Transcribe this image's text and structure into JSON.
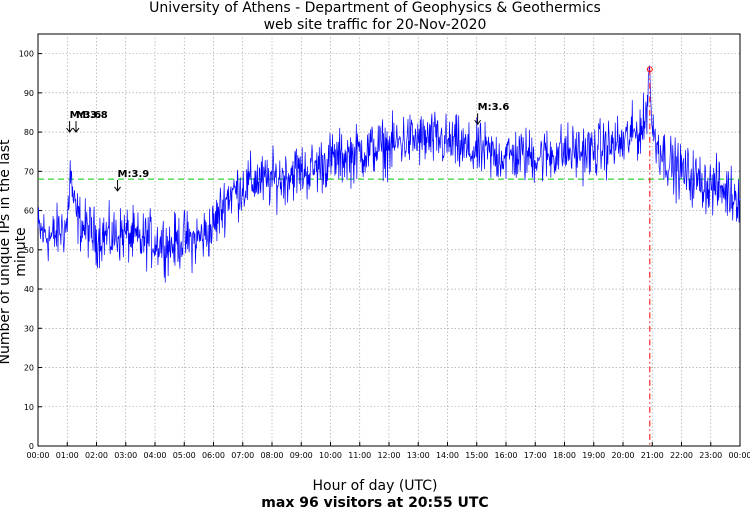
{
  "chart_data": {
    "type": "line",
    "title": "University of Athens - Department of Geophysics & Geothermics",
    "subtitle": "web site traffic for 20-Nov-2020",
    "xlabel": "Hour of day (UTC)",
    "ylabel": "Number of unique IPs in the last minute",
    "footnote": "max 96 visitors at 20:55 UTC",
    "xlim": [
      0,
      24
    ],
    "ylim": [
      0,
      105
    ],
    "grid": true,
    "x_ticks": [
      "00:00",
      "01:00",
      "02:00",
      "03:00",
      "04:00",
      "05:00",
      "06:00",
      "07:00",
      "08:00",
      "09:00",
      "10:00",
      "11:00",
      "12:00",
      "13:00",
      "14:00",
      "15:00",
      "16:00",
      "17:00",
      "18:00",
      "19:00",
      "20:00",
      "21:00",
      "22:00",
      "23:00",
      "00:00"
    ],
    "y_ticks": [
      0,
      10,
      20,
      30,
      40,
      50,
      60,
      70,
      80,
      90,
      100
    ],
    "series": [
      {
        "color": "#0000ff",
        "x_hours": [
          0,
          0.25,
          0.5,
          0.75,
          1,
          1.1,
          1.25,
          1.5,
          1.75,
          2,
          2.25,
          2.5,
          2.75,
          3,
          3.25,
          3.5,
          3.75,
          4,
          4.25,
          4.5,
          4.75,
          5,
          5.25,
          5.5,
          5.75,
          6,
          6.25,
          6.5,
          6.75,
          7,
          7.25,
          7.5,
          7.75,
          8,
          8.25,
          8.5,
          8.75,
          9,
          9.25,
          9.5,
          9.75,
          10,
          10.25,
          10.5,
          10.75,
          11,
          11.25,
          11.5,
          11.75,
          12,
          12.25,
          12.5,
          12.75,
          13,
          13.25,
          13.5,
          13.75,
          14,
          14.25,
          14.5,
          14.75,
          15,
          15.25,
          15.5,
          15.75,
          16,
          16.25,
          16.5,
          16.75,
          17,
          17.25,
          17.5,
          17.75,
          18,
          18.25,
          18.5,
          18.75,
          19,
          19.25,
          19.5,
          19.75,
          20,
          20.25,
          20.5,
          20.75,
          20.9167,
          21,
          21.25,
          21.5,
          21.75,
          22,
          22.25,
          22.5,
          22.75,
          23,
          23.25,
          23.5,
          23.75,
          24
        ],
        "values": [
          55,
          54,
          53,
          55,
          56,
          70,
          60,
          56,
          55,
          53,
          54,
          53,
          54,
          54,
          53,
          52,
          53,
          52,
          52,
          51,
          52,
          53,
          52,
          53,
          54,
          56,
          60,
          64,
          65,
          66,
          67,
          68,
          67,
          68,
          68,
          69,
          70,
          70,
          70,
          71,
          72,
          73,
          73,
          74,
          74,
          75,
          75,
          76,
          76,
          76,
          77,
          78,
          78,
          78,
          78,
          78,
          78,
          77,
          77,
          76,
          75,
          75,
          75,
          74,
          74,
          74,
          74,
          74,
          74,
          74,
          74,
          74,
          75,
          75,
          75,
          75,
          75,
          75,
          76,
          76,
          77,
          77,
          79,
          80,
          82,
          96,
          80,
          76,
          73,
          71,
          70,
          69,
          68,
          67,
          66,
          66,
          65,
          64,
          64
        ]
      }
    ],
    "reference_line": {
      "y": 68,
      "color": "#00cc00",
      "style": "dashed"
    },
    "max_marker": {
      "x_hours": 20.9167,
      "y": 96,
      "color": "#ff0000"
    },
    "annotations": [
      {
        "x_hours": 1.08,
        "y": 80,
        "label": "M:3.6"
      },
      {
        "x_hours": 1.3,
        "y": 80,
        "label": "M:3.8"
      },
      {
        "x_hours": 2.72,
        "y": 65,
        "label": "M:3.9"
      },
      {
        "x_hours": 15.03,
        "y": 82,
        "label": "M:3.6"
      }
    ]
  }
}
